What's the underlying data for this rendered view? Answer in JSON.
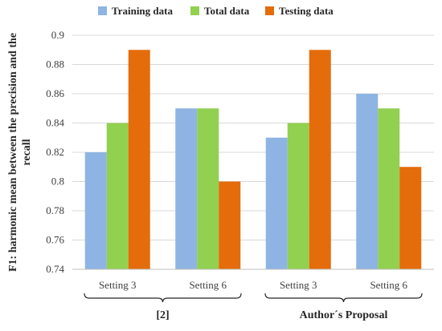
{
  "chart_data": {
    "type": "bar",
    "ylabel_lines": [
      "F1: harmonic mean between the precision and the",
      "recall"
    ],
    "ylim": [
      0.74,
      0.9
    ],
    "yticks": [
      "0.74",
      "0.76",
      "0.78",
      "0.8",
      "0.82",
      "0.84",
      "0.86",
      "0.88",
      "0.9"
    ],
    "categories": [
      "Setting 3",
      "Setting 6",
      "Setting 3",
      "Setting 6"
    ],
    "groups": [
      {
        "label": "[2]",
        "categories": [
          0,
          1
        ]
      },
      {
        "label": "Author´s  Proposal",
        "categories": [
          2,
          3
        ]
      }
    ],
    "series": [
      {
        "name": "Training data",
        "color": "#8EB4E3",
        "values": [
          0.82,
          0.85,
          0.83,
          0.86
        ]
      },
      {
        "name": "Total data",
        "color": "#92D050",
        "values": [
          0.84,
          0.85,
          0.84,
          0.85
        ]
      },
      {
        "name": "Testing data",
        "color": "#E46C0A",
        "values": [
          0.89,
          0.8,
          0.89,
          0.81
        ]
      }
    ],
    "legend_position": "top",
    "grid": true
  }
}
